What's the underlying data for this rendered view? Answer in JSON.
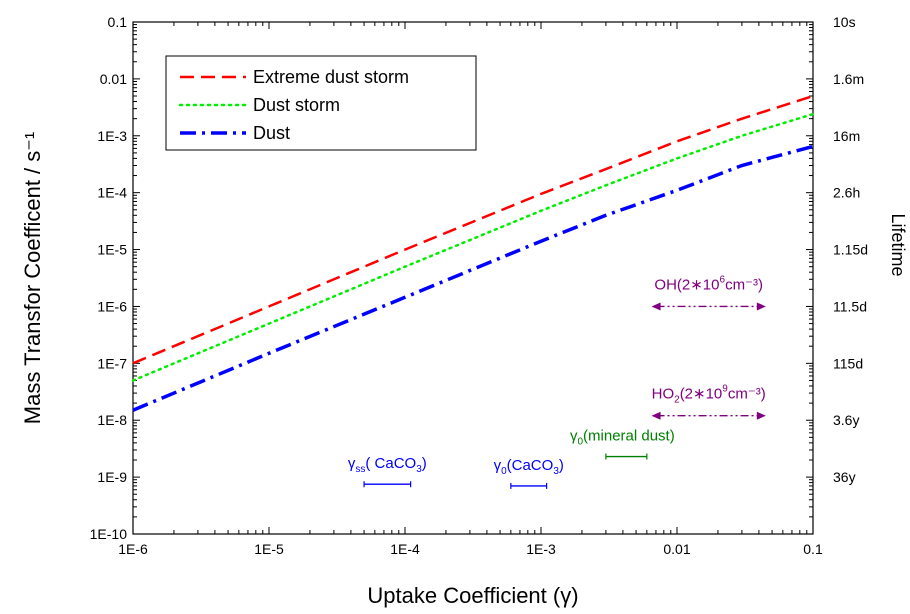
{
  "chart_data": {
    "type": "line",
    "xlabel": "Uptake Coefficient (γ)",
    "ylabel": "Mass Transfor Coefficent / s⁻¹",
    "y2label": "Lifetime",
    "xscale": "log",
    "yscale": "log",
    "xlim": [
      1e-06,
      0.1
    ],
    "ylim": [
      1e-10,
      0.1
    ],
    "x_ticks": [
      {
        "value": 1e-06,
        "label": "1E-6"
      },
      {
        "value": 1e-05,
        "label": "1E-5"
      },
      {
        "value": 0.0001,
        "label": "1E-4"
      },
      {
        "value": 0.001,
        "label": "1E-3"
      },
      {
        "value": 0.01,
        "label": "0.01"
      },
      {
        "value": 0.1,
        "label": "0.1"
      }
    ],
    "y_ticks": [
      {
        "value": 0.1,
        "label": "0.1"
      },
      {
        "value": 0.01,
        "label": "0.01"
      },
      {
        "value": 0.001,
        "label": "1E-3"
      },
      {
        "value": 0.0001,
        "label": "1E-4"
      },
      {
        "value": 1e-05,
        "label": "1E-5"
      },
      {
        "value": 1e-06,
        "label": "1E-6"
      },
      {
        "value": 1e-07,
        "label": "1E-7"
      },
      {
        "value": 1e-08,
        "label": "1E-8"
      },
      {
        "value": 1e-09,
        "label": "1E-9"
      },
      {
        "value": 1e-10,
        "label": "1E-10"
      }
    ],
    "y2_ticks": [
      {
        "value": 0.1,
        "label": "10s"
      },
      {
        "value": 0.01,
        "label": "1.6m"
      },
      {
        "value": 0.001,
        "label": "16m"
      },
      {
        "value": 0.0001,
        "label": "2.6h"
      },
      {
        "value": 1e-05,
        "label": "1.15d"
      },
      {
        "value": 1e-06,
        "label": "11.5d"
      },
      {
        "value": 1e-07,
        "label": "115d"
      },
      {
        "value": 1e-08,
        "label": "3.6y"
      },
      {
        "value": 1e-09,
        "label": "36y"
      }
    ],
    "series": [
      {
        "name": "Extreme dust storm",
        "color": "#ff0000",
        "style": "dashed",
        "x": [
          1e-06,
          1e-05,
          0.0001,
          0.001,
          0.003,
          0.01,
          0.03,
          0.1
        ],
        "y": [
          1e-07,
          1e-06,
          1e-05,
          9.5e-05,
          0.00026,
          0.0008,
          0.002,
          0.005
        ]
      },
      {
        "name": "Dust storm",
        "color": "#00ee00",
        "style": "dotted",
        "x": [
          1e-06,
          1e-05,
          0.0001,
          0.001,
          0.003,
          0.01,
          0.03,
          0.1
        ],
        "y": [
          5e-08,
          5e-07,
          5e-06,
          4.8e-05,
          0.000135,
          0.0004,
          0.001,
          0.0024
        ]
      },
      {
        "name": "Dust",
        "color": "#0000ff",
        "style": "dashdot",
        "x": [
          1e-06,
          1e-05,
          0.0001,
          0.001,
          0.003,
          0.01,
          0.03,
          0.1
        ],
        "y": [
          1.5e-08,
          1.5e-07,
          1.45e-06,
          1.4e-05,
          4e-05,
          0.00011,
          0.0003,
          0.00065
        ]
      }
    ],
    "legend": {
      "position": "top-left"
    },
    "annotations": [
      {
        "id": "oh",
        "main": "OH(2∗10",
        "sup": "6",
        "tail": "cm⁻³)",
        "color": "#800080",
        "x_range": [
          0.0065,
          0.045
        ],
        "y": 1e-06,
        "kind": "double-arrow"
      },
      {
        "id": "ho2",
        "main": "HO",
        "sub": "2",
        "mid": "(2∗10",
        "sup": "9",
        "tail": "cm⁻³)",
        "color": "#800080",
        "x_range": [
          0.0065,
          0.045
        ],
        "y": 1.2e-08,
        "kind": "double-arrow"
      },
      {
        "id": "gss",
        "main": "γ",
        "sub": "ss",
        "tail": "( CaCO",
        "sub2": "3",
        "tail2": ")",
        "color": "#0000ff",
        "x_range": [
          5e-05,
          0.00011
        ],
        "y": 7.5e-10,
        "kind": "bar"
      },
      {
        "id": "g0c",
        "main": "γ",
        "sub": "0",
        "tail": "(CaCO",
        "sub2": "3",
        "tail2": ")",
        "color": "#0000ff",
        "x_range": [
          0.0006,
          0.0011
        ],
        "y": 7e-10,
        "kind": "bar"
      },
      {
        "id": "g0m",
        "main": "γ",
        "sub": "0",
        "tail": "(mineral dust)",
        "color": "#008000",
        "x_range": [
          0.003,
          0.006
        ],
        "y": 2.3e-09,
        "kind": "bar"
      }
    ]
  }
}
